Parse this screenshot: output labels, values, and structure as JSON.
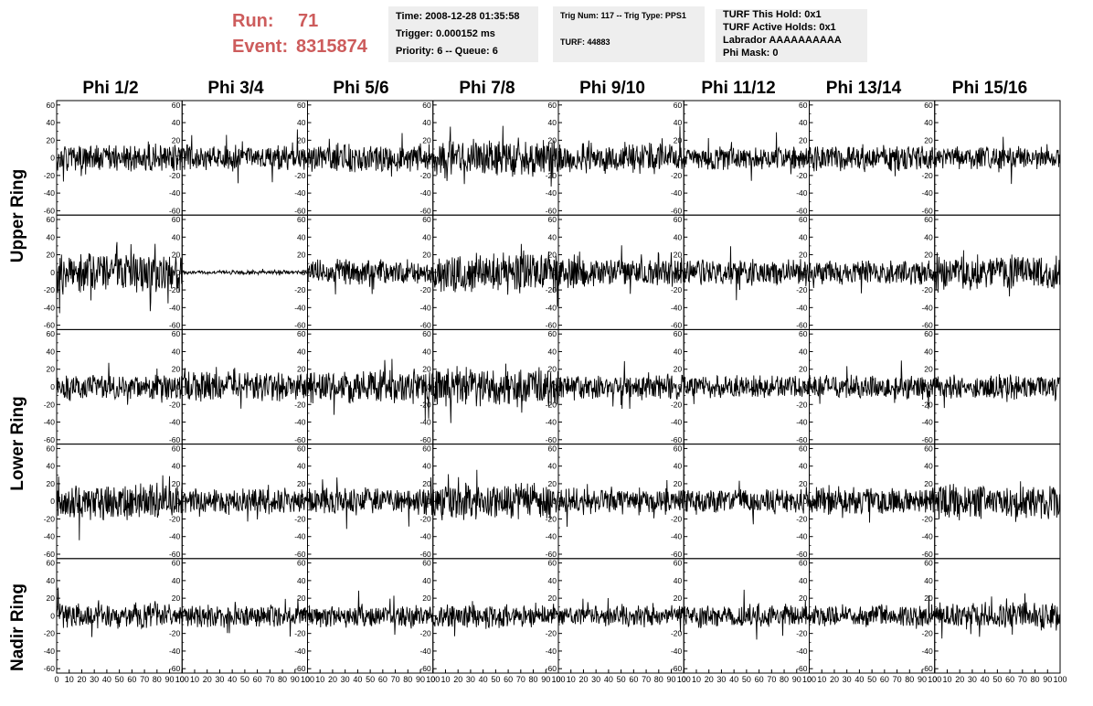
{
  "header": {
    "run_label": "Run:",
    "run_value": "71",
    "event_label": "Event:",
    "event_value": "8315874"
  },
  "info_boxes": {
    "time_box": {
      "time": "Time: 2008-12-28 01:35:58",
      "trigger": "Trigger: 0.000152 ms",
      "priority": "Priority: 6 -- Queue: 6"
    },
    "trig_box": {
      "trig": "Trig Num: 117 -- Trig Type: PPS1",
      "turf": "TURF: 44883"
    },
    "turf_box": {
      "hold": "TURF This Hold: 0x1",
      "active": "TURF Active Holds: 0x1",
      "labrador": "Labrador AAAAAAAAAA",
      "phimask": "Phi Mask: 0"
    }
  },
  "chart_data": {
    "type": "line",
    "columns": [
      "Phi 1/2",
      "Phi 3/4",
      "Phi 5/6",
      "Phi 7/8",
      "Phi 9/10",
      "Phi 11/12",
      "Phi 13/14",
      "Phi 15/16"
    ],
    "rows": [
      "Upper Ring",
      "Lower Ring",
      "Nadir Ring"
    ],
    "ylim": [
      -65,
      65
    ],
    "xlim": [
      0,
      100
    ],
    "yticks": [
      -60,
      -40,
      -20,
      0,
      20,
      40,
      60
    ],
    "xticks": [
      0,
      10,
      20,
      30,
      40,
      50,
      60,
      70,
      80,
      90,
      100
    ],
    "panels": [
      {
        "row": 0,
        "col": 0,
        "amp": 13,
        "seed": 11
      },
      {
        "row": 0,
        "col": 1,
        "amp": 12,
        "seed": 12
      },
      {
        "row": 0,
        "col": 2,
        "amp": 14,
        "seed": 13
      },
      {
        "row": 0,
        "col": 3,
        "amp": 19,
        "seed": 14
      },
      {
        "row": 0,
        "col": 4,
        "amp": 15,
        "seed": 15
      },
      {
        "row": 0,
        "col": 5,
        "amp": 11,
        "seed": 16
      },
      {
        "row": 0,
        "col": 6,
        "amp": 13,
        "seed": 17
      },
      {
        "row": 0,
        "col": 7,
        "amp": 11,
        "seed": 18
      },
      {
        "row": 1,
        "col": 0,
        "amp": 20,
        "seed": 21
      },
      {
        "row": 1,
        "col": 1,
        "amp": 2,
        "seed": 22
      },
      {
        "row": 1,
        "col": 2,
        "amp": 12,
        "seed": 23
      },
      {
        "row": 1,
        "col": 3,
        "amp": 20,
        "seed": 24
      },
      {
        "row": 1,
        "col": 4,
        "amp": 14,
        "seed": 25
      },
      {
        "row": 1,
        "col": 5,
        "amp": 13,
        "seed": 26
      },
      {
        "row": 1,
        "col": 6,
        "amp": 12,
        "seed": 27
      },
      {
        "row": 1,
        "col": 7,
        "amp": 16,
        "seed": 28
      },
      {
        "row": 2,
        "col": 0,
        "amp": 12,
        "seed": 31
      },
      {
        "row": 2,
        "col": 1,
        "amp": 15,
        "seed": 32
      },
      {
        "row": 2,
        "col": 2,
        "amp": 16,
        "seed": 33
      },
      {
        "row": 2,
        "col": 3,
        "amp": 19,
        "seed": 34
      },
      {
        "row": 2,
        "col": 4,
        "amp": 12,
        "seed": 35
      },
      {
        "row": 2,
        "col": 5,
        "amp": 11,
        "seed": 36
      },
      {
        "row": 2,
        "col": 6,
        "amp": 12,
        "seed": 37
      },
      {
        "row": 2,
        "col": 7,
        "amp": 12,
        "seed": 38
      },
      {
        "row": 3,
        "col": 0,
        "amp": 17,
        "seed": 41
      },
      {
        "row": 3,
        "col": 1,
        "amp": 13,
        "seed": 42
      },
      {
        "row": 3,
        "col": 2,
        "amp": 13,
        "seed": 43
      },
      {
        "row": 3,
        "col": 3,
        "amp": 17,
        "seed": 44
      },
      {
        "row": 3,
        "col": 4,
        "amp": 13,
        "seed": 45
      },
      {
        "row": 3,
        "col": 5,
        "amp": 12,
        "seed": 46
      },
      {
        "row": 3,
        "col": 6,
        "amp": 13,
        "seed": 47
      },
      {
        "row": 3,
        "col": 7,
        "amp": 17,
        "seed": 48
      },
      {
        "row": 4,
        "col": 0,
        "amp": 12,
        "seed": 51
      },
      {
        "row": 4,
        "col": 1,
        "amp": 11,
        "seed": 52
      },
      {
        "row": 4,
        "col": 2,
        "amp": 11,
        "seed": 53
      },
      {
        "row": 4,
        "col": 3,
        "amp": 12,
        "seed": 54
      },
      {
        "row": 4,
        "col": 4,
        "amp": 10,
        "seed": 55
      },
      {
        "row": 4,
        "col": 5,
        "amp": 11,
        "seed": 56
      },
      {
        "row": 4,
        "col": 6,
        "amp": 11,
        "seed": 57
      },
      {
        "row": 4,
        "col": 7,
        "amp": 13,
        "seed": 58
      }
    ],
    "colors": {
      "trace": "#000000",
      "header_text": "#cd5c5c",
      "info_bg": "#eeeeee"
    }
  }
}
